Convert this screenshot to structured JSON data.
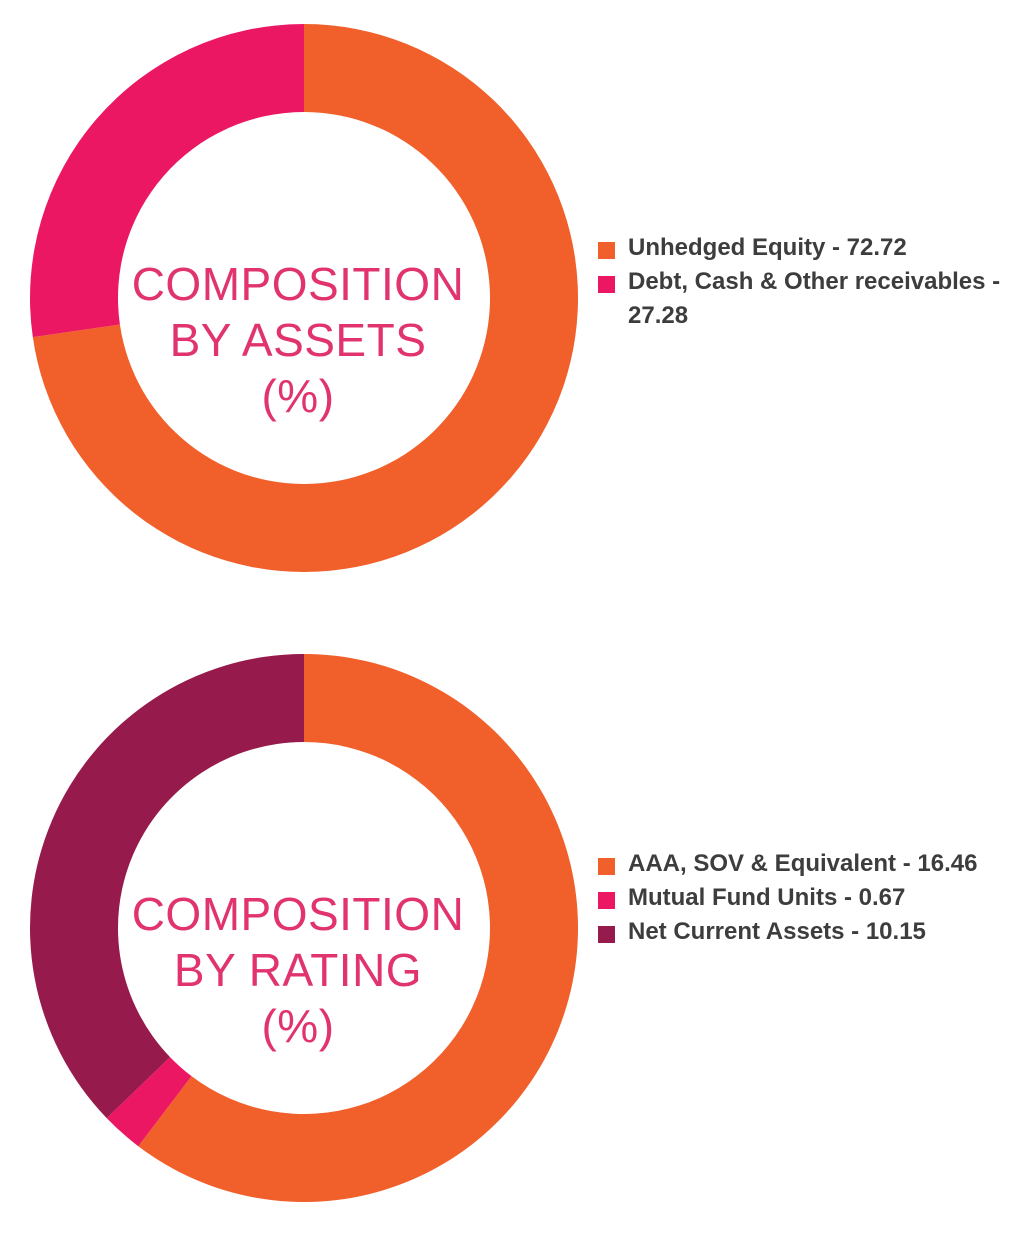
{
  "chart_data": [
    {
      "type": "pie",
      "title_lines": [
        "COMPOSITION",
        "BY ASSETS",
        "(%)"
      ],
      "slices": [
        {
          "label": "Unhedged Equity - 72.72",
          "value": 72.72,
          "color": "#f15f2a"
        },
        {
          "label": "Debt, Cash & Other receivables - 27.28",
          "value": 27.28,
          "color": "#ec1763"
        }
      ]
    },
    {
      "type": "pie",
      "title_lines": [
        "COMPOSITION",
        "BY RATING",
        "(%)"
      ],
      "slices": [
        {
          "label": "AAA, SOV & Equivalent - 16.46",
          "value": 16.46,
          "color": "#f15f2a"
        },
        {
          "label": "Mutual Fund Units - 0.67",
          "value": 0.67,
          "color": "#ec1763"
        },
        {
          "label": "Net Current Assets - 10.15",
          "value": 10.15,
          "color": "#971a4c"
        }
      ]
    }
  ]
}
